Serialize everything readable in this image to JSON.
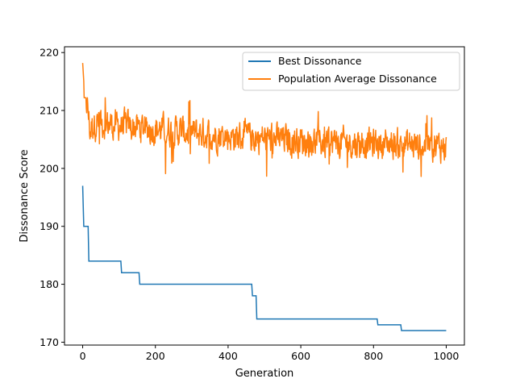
{
  "chart_data": {
    "type": "line",
    "title": "",
    "xlabel": "Generation",
    "ylabel": "Dissonance Score",
    "xlim": [
      -50,
      1050
    ],
    "ylim": [
      169.5,
      221
    ],
    "xticks": [
      0,
      200,
      400,
      600,
      800,
      1000
    ],
    "yticks": [
      170,
      180,
      190,
      200,
      210,
      220
    ],
    "grid": false,
    "legend_position": "top-right",
    "series": [
      {
        "name": "Best Dissonance",
        "color": "#1f77b4",
        "style": "step",
        "points": [
          [
            0,
            197
          ],
          [
            3,
            190
          ],
          [
            15,
            190
          ],
          [
            17,
            184
          ],
          [
            105,
            184
          ],
          [
            107,
            182
          ],
          [
            155,
            182
          ],
          [
            157,
            180
          ],
          [
            465,
            180
          ],
          [
            467,
            178
          ],
          [
            477,
            178
          ],
          [
            479,
            174
          ],
          [
            810,
            174
          ],
          [
            812,
            173
          ],
          [
            875,
            173
          ],
          [
            877,
            172
          ],
          [
            1000,
            172
          ]
        ]
      },
      {
        "name": "Population Average Dissonance",
        "color": "#ff7f0e",
        "style": "noisy-line",
        "points": [
          [
            0,
            218.2
          ],
          [
            4,
            214.0
          ],
          [
            8,
            212.1
          ],
          [
            14,
            210.5
          ],
          [
            20,
            206.5
          ],
          [
            28,
            207.5
          ],
          [
            40,
            208.0
          ],
          [
            60,
            207.8
          ],
          [
            80,
            207.5
          ],
          [
            100,
            207.4
          ],
          [
            130,
            207.2
          ],
          [
            160,
            207.0
          ],
          [
            200,
            206.8
          ],
          [
            250,
            206.5
          ],
          [
            300,
            206.2
          ],
          [
            350,
            205.9
          ],
          [
            400,
            205.6
          ],
          [
            450,
            205.4
          ],
          [
            500,
            205.2
          ],
          [
            550,
            205.0
          ],
          [
            600,
            204.8
          ],
          [
            650,
            204.6
          ],
          [
            700,
            204.5
          ],
          [
            750,
            204.4
          ],
          [
            800,
            204.3
          ],
          [
            850,
            204.2
          ],
          [
            900,
            204.1
          ],
          [
            950,
            204.0
          ],
          [
            1000,
            203.8
          ]
        ],
        "noise_amplitude": 2.2,
        "range_observed": [
          196.0,
          218.2
        ]
      }
    ]
  }
}
